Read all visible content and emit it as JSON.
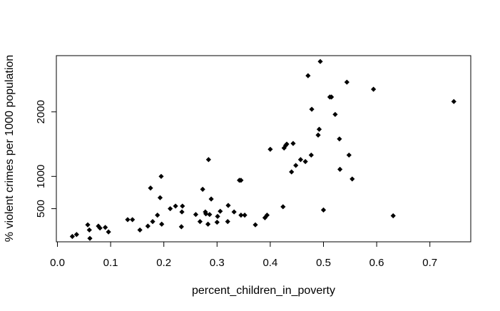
{
  "chart_data": {
    "type": "scatter",
    "title": "",
    "xlabel": "percent_children_in_poverty",
    "ylabel": "% violent crimes per 1000 population",
    "xlim": [
      0.0,
      0.75
    ],
    "ylim": [
      0,
      2800
    ],
    "x_ticks": [
      {
        "value": 0.0,
        "label": "0.0"
      },
      {
        "value": 0.1,
        "label": "0.1"
      },
      {
        "value": 0.2,
        "label": "0.2"
      },
      {
        "value": 0.3,
        "label": "0.3"
      },
      {
        "value": 0.4,
        "label": "0.4"
      },
      {
        "value": 0.5,
        "label": "0.5"
      },
      {
        "value": 0.6,
        "label": "0.6"
      },
      {
        "value": 0.7,
        "label": "0.7"
      }
    ],
    "y_ticks": [
      {
        "value": 500,
        "label": "500"
      },
      {
        "value": 1000,
        "label": "1000"
      },
      {
        "value": 2000,
        "label": "2000"
      }
    ],
    "marker": "filled-diamond",
    "marker_color": "#000000",
    "grid": false,
    "points": [
      {
        "x": 0.028,
        "y": 70
      },
      {
        "x": 0.036,
        "y": 100
      },
      {
        "x": 0.057,
        "y": 250
      },
      {
        "x": 0.06,
        "y": 170
      },
      {
        "x": 0.061,
        "y": 40
      },
      {
        "x": 0.077,
        "y": 230
      },
      {
        "x": 0.08,
        "y": 200
      },
      {
        "x": 0.09,
        "y": 210
      },
      {
        "x": 0.096,
        "y": 140
      },
      {
        "x": 0.132,
        "y": 330
      },
      {
        "x": 0.141,
        "y": 330
      },
      {
        "x": 0.155,
        "y": 170
      },
      {
        "x": 0.17,
        "y": 230
      },
      {
        "x": 0.175,
        "y": 820
      },
      {
        "x": 0.179,
        "y": 300
      },
      {
        "x": 0.188,
        "y": 400
      },
      {
        "x": 0.193,
        "y": 670
      },
      {
        "x": 0.195,
        "y": 1000
      },
      {
        "x": 0.196,
        "y": 260
      },
      {
        "x": 0.212,
        "y": 500
      },
      {
        "x": 0.222,
        "y": 540
      },
      {
        "x": 0.233,
        "y": 220
      },
      {
        "x": 0.234,
        "y": 450
      },
      {
        "x": 0.235,
        "y": 540
      },
      {
        "x": 0.26,
        "y": 410
      },
      {
        "x": 0.268,
        "y": 300
      },
      {
        "x": 0.273,
        "y": 800
      },
      {
        "x": 0.278,
        "y": 450
      },
      {
        "x": 0.279,
        "y": 420
      },
      {
        "x": 0.283,
        "y": 260
      },
      {
        "x": 0.284,
        "y": 1260
      },
      {
        "x": 0.286,
        "y": 410
      },
      {
        "x": 0.289,
        "y": 650
      },
      {
        "x": 0.3,
        "y": 290
      },
      {
        "x": 0.301,
        "y": 380
      },
      {
        "x": 0.306,
        "y": 460
      },
      {
        "x": 0.32,
        "y": 300
      },
      {
        "x": 0.321,
        "y": 550
      },
      {
        "x": 0.332,
        "y": 450
      },
      {
        "x": 0.342,
        "y": 940
      },
      {
        "x": 0.345,
        "y": 940
      },
      {
        "x": 0.345,
        "y": 400
      },
      {
        "x": 0.352,
        "y": 400
      },
      {
        "x": 0.372,
        "y": 250
      },
      {
        "x": 0.39,
        "y": 360
      },
      {
        "x": 0.394,
        "y": 400
      },
      {
        "x": 0.4,
        "y": 1420
      },
      {
        "x": 0.424,
        "y": 530
      },
      {
        "x": 0.426,
        "y": 1440
      },
      {
        "x": 0.429,
        "y": 1480
      },
      {
        "x": 0.431,
        "y": 1500
      },
      {
        "x": 0.44,
        "y": 1070
      },
      {
        "x": 0.443,
        "y": 1510
      },
      {
        "x": 0.448,
        "y": 1170
      },
      {
        "x": 0.457,
        "y": 1260
      },
      {
        "x": 0.466,
        "y": 1230
      },
      {
        "x": 0.471,
        "y": 2560
      },
      {
        "x": 0.477,
        "y": 1330
      },
      {
        "x": 0.478,
        "y": 2040
      },
      {
        "x": 0.49,
        "y": 1640
      },
      {
        "x": 0.492,
        "y": 1730
      },
      {
        "x": 0.494,
        "y": 2780
      },
      {
        "x": 0.5,
        "y": 480
      },
      {
        "x": 0.512,
        "y": 2230
      },
      {
        "x": 0.515,
        "y": 2230
      },
      {
        "x": 0.522,
        "y": 1960
      },
      {
        "x": 0.53,
        "y": 1580
      },
      {
        "x": 0.531,
        "y": 1110
      },
      {
        "x": 0.544,
        "y": 2460
      },
      {
        "x": 0.548,
        "y": 1330
      },
      {
        "x": 0.554,
        "y": 960
      },
      {
        "x": 0.594,
        "y": 2350
      },
      {
        "x": 0.631,
        "y": 390
      },
      {
        "x": 0.745,
        "y": 2160
      }
    ]
  }
}
